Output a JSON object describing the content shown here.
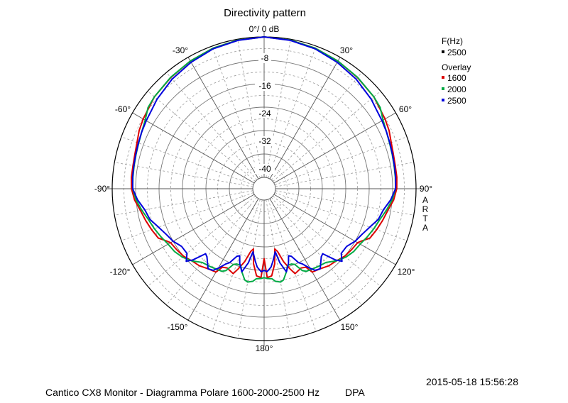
{
  "title": "Directivity pattern",
  "top_label": "0°/ 0 dB",
  "ring_labels": [
    "-8",
    "-16",
    "-24",
    "-32",
    "-40"
  ],
  "angle_labels": {
    "m30": "-30°",
    "p30": "30°",
    "m60": "-60°",
    "p60": "60°",
    "m90": "-90°",
    "p90": "90°",
    "m120": "-120°",
    "p120": "120°",
    "m150": "-150°",
    "p150": "150°",
    "d180": "180°"
  },
  "side_label": [
    "A",
    "R",
    "T",
    "A"
  ],
  "legend": {
    "freq_header": "F(Hz)",
    "freq_value": "2500",
    "overlay_header": "Overlay",
    "items": [
      "1600",
      "2000",
      "2500"
    ]
  },
  "footer": {
    "timestamp": "2015-05-18  15:56:28",
    "caption": "Cantico CX8 Monitor - Diagramma Polare 1600-2000-2500 Hz",
    "brand": "DPA"
  },
  "chart_data": {
    "type": "polar",
    "title": "Directivity pattern",
    "radial_unit": "dB",
    "rlim": [
      -48,
      0
    ],
    "ring_values": [
      0,
      -8,
      -16,
      -24,
      -32,
      -40
    ],
    "angle_ticks_deg": [
      -150,
      -120,
      -90,
      -60,
      -30,
      0,
      30,
      60,
      90,
      120,
      150,
      180
    ],
    "grid": true,
    "legend_position": "top-right",
    "series": [
      {
        "name": "1600",
        "color": "#dd0000",
        "angles": [
          0,
          10,
          20,
          30,
          40,
          50,
          55,
          60,
          65,
          70,
          75,
          80,
          85,
          90,
          95,
          100,
          105,
          110,
          115,
          118,
          120,
          125,
          130,
          135,
          140,
          145,
          150,
          152,
          155,
          160,
          162,
          165,
          168,
          170,
          172,
          175,
          178,
          180
        ],
        "values": [
          0,
          -0.3,
          -0.8,
          -1.5,
          -2.3,
          -3,
          -3.8,
          -4.2,
          -4.8,
          -5.7,
          -6.2,
          -6.4,
          -6.4,
          -6.6,
          -7.5,
          -9,
          -10,
          -11,
          -12,
          -14,
          -15,
          -15.5,
          -16,
          -17,
          -17.5,
          -18.5,
          -19,
          -21.5,
          -22,
          -21,
          -23,
          -26,
          -30,
          -31,
          -26,
          -22,
          -21.5,
          -28
        ]
      },
      {
        "name": "2000",
        "color": "#00aa44",
        "angles": [
          0,
          10,
          20,
          30,
          40,
          50,
          55,
          60,
          65,
          70,
          75,
          80,
          85,
          90,
          95,
          100,
          105,
          110,
          115,
          120,
          125,
          130,
          135,
          140,
          145,
          150,
          153,
          155,
          158,
          160,
          163,
          165,
          168,
          170,
          173,
          175,
          178,
          180
        ],
        "values": [
          0,
          -0.3,
          -0.8,
          -1.5,
          -2.2,
          -3,
          -3.5,
          -5,
          -5.8,
          -6.3,
          -6.6,
          -6.8,
          -6.9,
          -7,
          -8,
          -9.5,
          -11,
          -12,
          -13,
          -14,
          -14.5,
          -15.5,
          -17,
          -19,
          -19.5,
          -20,
          -20.2,
          -21,
          -24,
          -24.5,
          -24.5,
          -22.5,
          -20,
          -19.5,
          -20,
          -21,
          -21.2,
          -21.5
        ]
      },
      {
        "name": "2500",
        "color": "#0000dd",
        "angles": [
          0,
          10,
          20,
          30,
          40,
          50,
          55,
          60,
          65,
          70,
          75,
          80,
          85,
          90,
          95,
          100,
          105,
          110,
          115,
          120,
          125,
          130,
          133,
          135,
          138,
          140,
          145,
          148,
          150,
          153,
          155,
          158,
          160,
          162,
          165,
          168,
          170,
          173,
          175,
          178,
          180
        ],
        "values": [
          0,
          -0.4,
          -1,
          -2,
          -3,
          -4.2,
          -5,
          -5.4,
          -5.8,
          -6.2,
          -6.5,
          -6.7,
          -6.8,
          -7,
          -8.5,
          -10.5,
          -11.5,
          -13.5,
          -15,
          -16,
          -17.5,
          -17.5,
          -15.5,
          -17.5,
          -22,
          -21.5,
          -18.5,
          -19,
          -20.5,
          -23,
          -24,
          -27,
          -27.5,
          -25,
          -22.5,
          -26,
          -30,
          -27,
          -25,
          -23.5,
          -24
        ]
      }
    ]
  }
}
